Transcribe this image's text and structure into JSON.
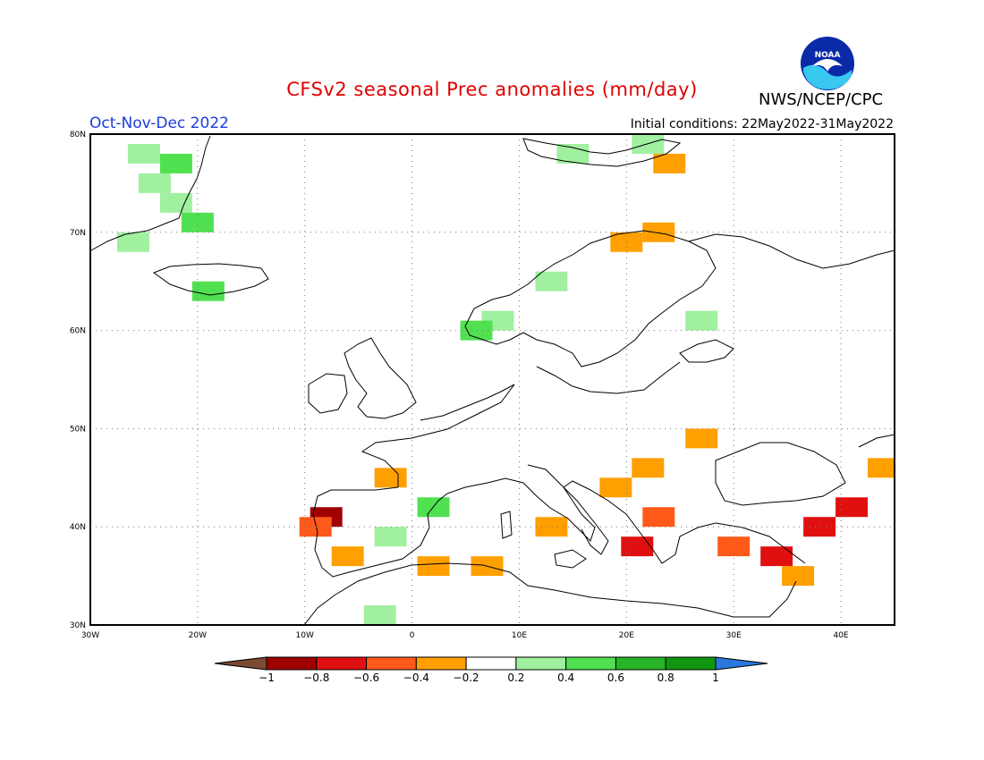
{
  "header": {
    "title": "CFSv2 seasonal Prec anomalies (mm/day)",
    "period": "Oct-Nov-Dec 2022",
    "initial_conditions": "Initial conditions: 22May2022-31May2022",
    "agency": "NWS/NCEP/CPC",
    "logo_text": "NOAA"
  },
  "map": {
    "projection": "lat-lon",
    "lon_range": [
      -30,
      45
    ],
    "lat_range": [
      30,
      80
    ],
    "lat_ticks": [
      {
        "value": 80,
        "label": "80N"
      },
      {
        "value": 70,
        "label": "70N"
      },
      {
        "value": 60,
        "label": "60N"
      },
      {
        "value": 50,
        "label": "50N"
      },
      {
        "value": 40,
        "label": "40N"
      },
      {
        "value": 30,
        "label": "30N"
      }
    ],
    "lon_ticks": [
      {
        "value": -30,
        "label": "30W"
      },
      {
        "value": -20,
        "label": "20W"
      },
      {
        "value": -10,
        "label": "10W"
      },
      {
        "value": 0,
        "label": "0"
      },
      {
        "value": 10,
        "label": "10E"
      },
      {
        "value": 20,
        "label": "20E"
      },
      {
        "value": 30,
        "label": "30E"
      },
      {
        "value": 40,
        "label": "40E"
      }
    ],
    "grid": "dotted",
    "anomaly_cells": [
      {
        "lon": -25,
        "lat": 78,
        "level": 0.3
      },
      {
        "lon": -22,
        "lat": 77,
        "level": 0.5
      },
      {
        "lon": -24,
        "lat": 75,
        "level": 0.3
      },
      {
        "lon": -22,
        "lat": 73,
        "level": 0.3
      },
      {
        "lon": -20,
        "lat": 71,
        "level": 0.5
      },
      {
        "lon": -26,
        "lat": 69,
        "level": 0.3
      },
      {
        "lon": -19,
        "lat": 64,
        "level": 0.5
      },
      {
        "lon": 8,
        "lat": 61,
        "level": 0.3
      },
      {
        "lon": 6,
        "lat": 60,
        "level": 0.5
      },
      {
        "lon": 13,
        "lat": 65,
        "level": 0.3
      },
      {
        "lon": 15,
        "lat": 78,
        "level": 0.3
      },
      {
        "lon": 22,
        "lat": 79,
        "level": 0.3
      },
      {
        "lon": 24,
        "lat": 77,
        "level": -0.3
      },
      {
        "lon": 20,
        "lat": 69,
        "level": -0.3
      },
      {
        "lon": 23,
        "lat": 70,
        "level": -0.3
      },
      {
        "lon": 27,
        "lat": 61,
        "level": 0.3
      },
      {
        "lon": -8,
        "lat": 41,
        "level": -0.9
      },
      {
        "lon": -9,
        "lat": 40,
        "level": -0.5
      },
      {
        "lon": -6,
        "lat": 37,
        "level": -0.3
      },
      {
        "lon": -2,
        "lat": 45,
        "level": -0.3
      },
      {
        "lon": 2,
        "lat": 42,
        "level": 0.5
      },
      {
        "lon": -2,
        "lat": 39,
        "level": 0.3
      },
      {
        "lon": 2,
        "lat": 36,
        "level": -0.3
      },
      {
        "lon": 7,
        "lat": 36,
        "level": -0.3
      },
      {
        "lon": 13,
        "lat": 40,
        "level": -0.3
      },
      {
        "lon": 19,
        "lat": 44,
        "level": -0.3
      },
      {
        "lon": 22,
        "lat": 46,
        "level": -0.3
      },
      {
        "lon": 27,
        "lat": 49,
        "level": -0.3
      },
      {
        "lon": 23,
        "lat": 41,
        "level": -0.5
      },
      {
        "lon": 21,
        "lat": 38,
        "level": -0.7
      },
      {
        "lon": 30,
        "lat": 38,
        "level": -0.5
      },
      {
        "lon": 34,
        "lat": 37,
        "level": -0.7
      },
      {
        "lon": 38,
        "lat": 40,
        "level": -0.7
      },
      {
        "lon": 41,
        "lat": 42,
        "level": -0.7
      },
      {
        "lon": 36,
        "lat": 35,
        "level": -0.3
      },
      {
        "lon": 44,
        "lat": 46,
        "level": -0.3
      },
      {
        "lon": -3,
        "lat": 31,
        "level": 0.3
      }
    ]
  },
  "colorbar": {
    "labels": [
      "-1",
      "-0.8",
      "-0.6",
      "-0.4",
      "-0.2",
      "0.2",
      "0.4",
      "0.6",
      "0.8",
      "1"
    ],
    "colors": [
      "#7a4a32",
      "#a00000",
      "#e01010",
      "#ff5a1a",
      "#ff9f00",
      "#ffffff",
      "#a0f0a0",
      "#50e050",
      "#28b428",
      "#109610",
      "#2878dc"
    ]
  }
}
